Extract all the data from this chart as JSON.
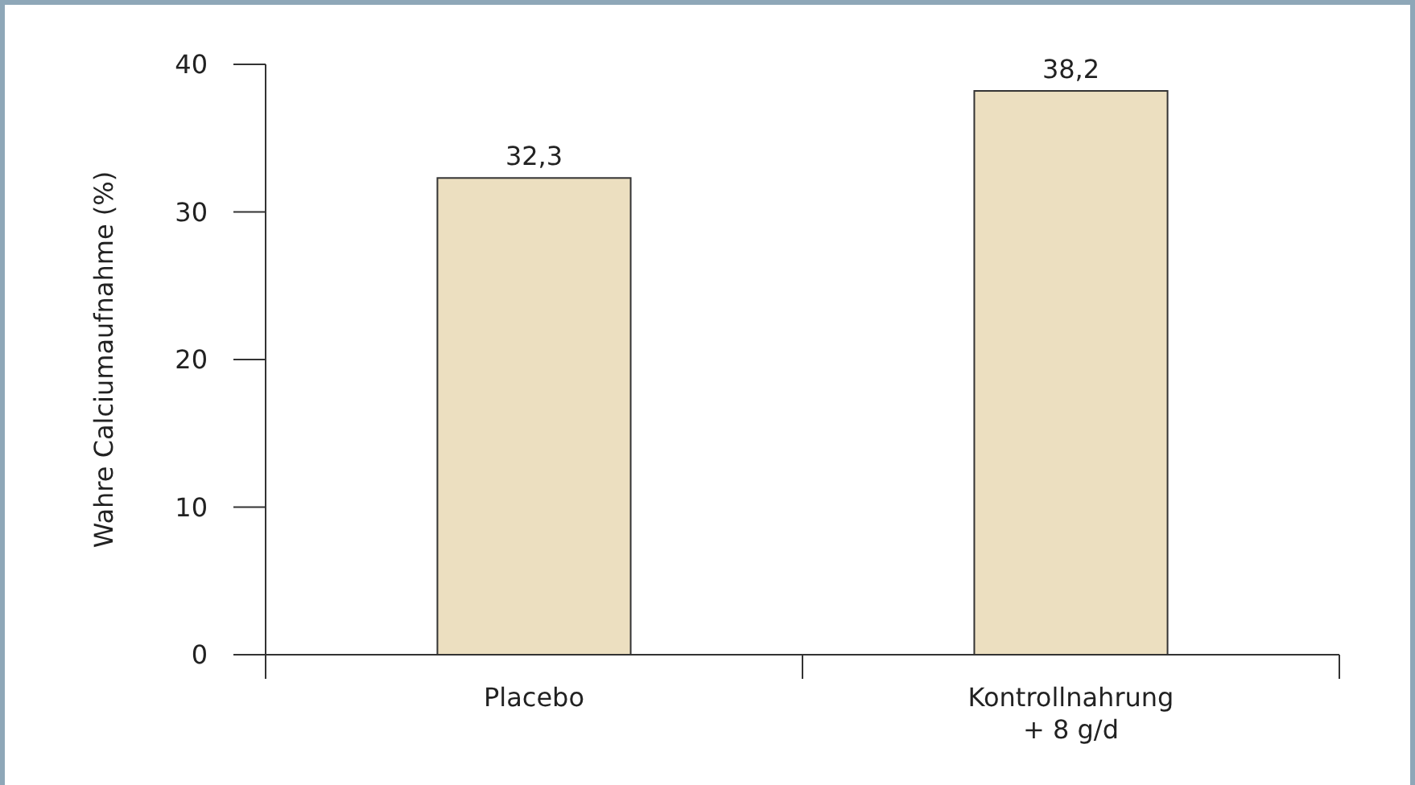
{
  "chart_data": {
    "type": "bar",
    "ylabel": "Wahre Calciumaufnahme (%)",
    "categories": [
      "Placebo",
      "Kontrollnahrung\n+ 8 g/d"
    ],
    "values": [
      32.3,
      38.2
    ],
    "value_labels": [
      "32,3",
      "38,2"
    ],
    "color": "#ecdfc0",
    "ylim": [
      0,
      40
    ],
    "yticks": [
      0,
      10,
      20,
      30,
      40
    ],
    "grid": false
  }
}
